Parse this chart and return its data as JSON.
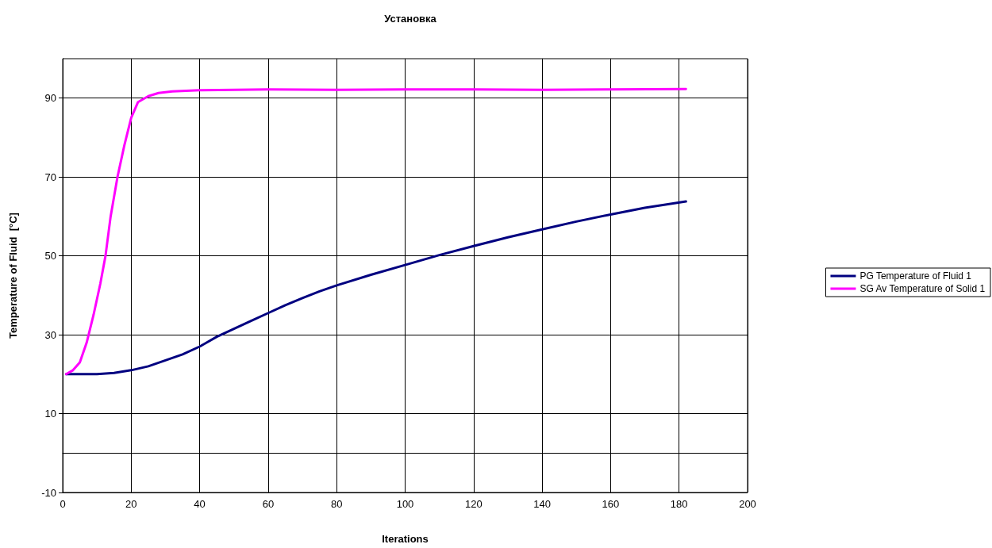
{
  "chart_data": {
    "type": "line",
    "title": "Установка",
    "xlabel": "Iterations",
    "ylabel": "Temperature of Fluid  [°C]",
    "xlim": [
      0,
      200
    ],
    "xticks": [
      0,
      20,
      40,
      60,
      80,
      100,
      120,
      140,
      160,
      180,
      200
    ],
    "ylim": [
      -10,
      100
    ],
    "yticks": [
      -10,
      10,
      30,
      50,
      70,
      90
    ],
    "grid": true,
    "legend": "right",
    "marker": "none",
    "line_style": "solid",
    "series": [
      {
        "name": "PG Temperature of Fluid 1",
        "color": "#000080",
        "x": [
          1,
          10,
          15,
          20,
          25,
          30,
          35,
          40,
          45,
          50,
          55,
          60,
          65,
          70,
          75,
          80,
          90,
          100,
          110,
          120,
          130,
          140,
          150,
          160,
          170,
          182
        ],
        "values": [
          20,
          20,
          20.3,
          21,
          22,
          23.5,
          25,
          27,
          29.5,
          31.5,
          33.5,
          35.5,
          37.5,
          39.3,
          41,
          42.5,
          45.2,
          47.7,
          50.2,
          52.5,
          54.7,
          56.7,
          58.7,
          60.5,
          62.2,
          63.8
        ]
      },
      {
        "name": "SG Av Temperature of Solid 1",
        "color": "#ff00ff",
        "x": [
          1,
          3,
          5,
          7,
          9,
          11,
          12.5,
          14,
          16,
          18,
          20,
          22,
          25,
          28,
          32,
          40,
          60,
          80,
          100,
          120,
          140,
          160,
          182
        ],
        "values": [
          20,
          21,
          23,
          28,
          35,
          43,
          50,
          60,
          70,
          78,
          85,
          89,
          90.5,
          91.3,
          91.7,
          92,
          92.2,
          92.1,
          92.2,
          92.2,
          92.1,
          92.2,
          92.3
        ]
      }
    ]
  }
}
